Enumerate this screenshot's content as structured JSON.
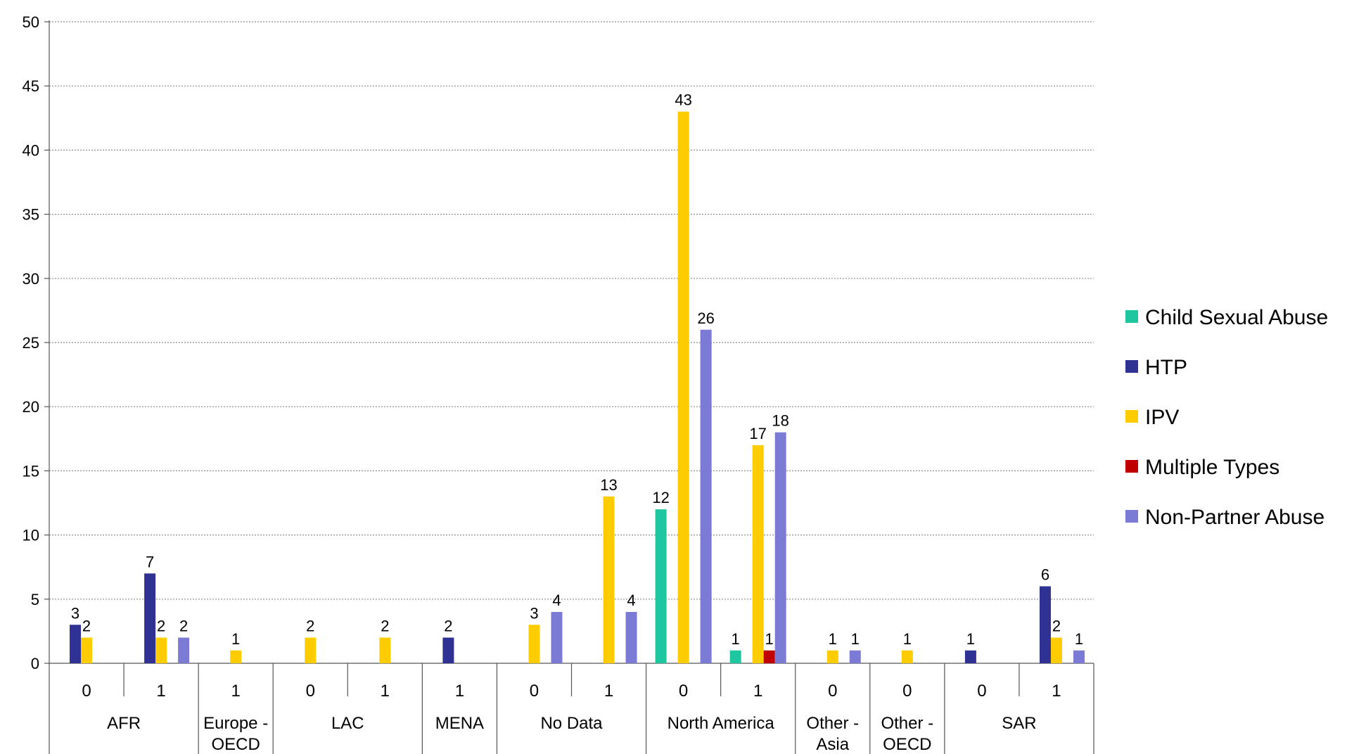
{
  "chart_data": {
    "type": "bar",
    "ylim": [
      0,
      50
    ],
    "yticks": [
      0,
      5,
      10,
      15,
      20,
      25,
      30,
      35,
      40,
      45,
      50
    ],
    "grid": true,
    "legend_position": "right",
    "groups": [
      {
        "label": "AFR",
        "subs": [
          "0",
          "1"
        ]
      },
      {
        "label": "Europe - OECD",
        "subs": [
          "1"
        ]
      },
      {
        "label": "LAC",
        "subs": [
          "0",
          "1"
        ]
      },
      {
        "label": "MENA",
        "subs": [
          "1"
        ]
      },
      {
        "label": "No Data",
        "subs": [
          "0",
          "1"
        ]
      },
      {
        "label": "North America",
        "subs": [
          "0",
          "1"
        ]
      },
      {
        "label": "Other - Asia",
        "subs": [
          "0"
        ]
      },
      {
        "label": "Other - OECD",
        "subs": [
          "0"
        ]
      },
      {
        "label": "SAR",
        "subs": [
          "0",
          "1"
        ]
      }
    ],
    "series": [
      {
        "name": "Child Sexual Abuse",
        "color": "#1fc7a0",
        "values": [
          null,
          null,
          null,
          null,
          null,
          null,
          null,
          null,
          12,
          1,
          null,
          null,
          null,
          null
        ]
      },
      {
        "name": "HTP",
        "color": "#2f3193",
        "values": [
          3,
          7,
          null,
          null,
          null,
          2,
          null,
          null,
          null,
          null,
          null,
          null,
          1,
          6
        ]
      },
      {
        "name": "IPV",
        "color": "#ffcc00",
        "values": [
          2,
          2,
          1,
          2,
          2,
          null,
          3,
          13,
          43,
          17,
          1,
          1,
          null,
          2
        ]
      },
      {
        "name": "Multiple Types",
        "color": "#c00000",
        "values": [
          null,
          null,
          null,
          null,
          null,
          null,
          null,
          null,
          null,
          1,
          null,
          null,
          null,
          null
        ]
      },
      {
        "name": "Non-Partner Abuse",
        "color": "#7b7bd6",
        "values": [
          null,
          2,
          null,
          null,
          null,
          null,
          4,
          4,
          26,
          18,
          1,
          null,
          null,
          1
        ]
      }
    ]
  }
}
